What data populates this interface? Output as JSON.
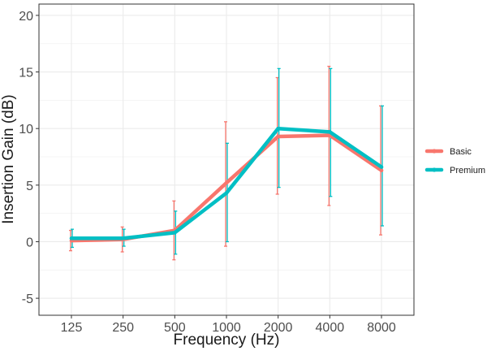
{
  "chart_data": {
    "type": "line",
    "xlabel": "Frequency (Hz)",
    "ylabel": "Insertion Gain (dB)",
    "ylim": [
      -6.5,
      21
    ],
    "yticks": [
      -5,
      0,
      5,
      10,
      15,
      20
    ],
    "categories": [
      "125",
      "250",
      "500",
      "1000",
      "2000",
      "4000",
      "8000"
    ],
    "grid": true,
    "legend_position": "right",
    "series": [
      {
        "name": "Basic",
        "color": "#F8766D",
        "values": [
          0.1,
          0.2,
          1.0,
          5.2,
          9.3,
          9.4,
          6.3
        ],
        "err_low": [
          -0.8,
          -0.9,
          -1.6,
          -0.4,
          4.2,
          3.2,
          0.6
        ],
        "err_high": [
          1.0,
          1.3,
          3.6,
          10.6,
          14.5,
          15.5,
          12.0
        ]
      },
      {
        "name": "Premium",
        "color": "#00BFC4",
        "values": [
          0.3,
          0.3,
          0.8,
          4.3,
          10.0,
          9.7,
          6.6
        ],
        "err_low": [
          -0.5,
          -0.4,
          -1.1,
          0.0,
          4.8,
          4.0,
          1.4
        ],
        "err_high": [
          1.1,
          1.1,
          2.7,
          8.7,
          15.3,
          15.3,
          12.0
        ]
      }
    ]
  }
}
